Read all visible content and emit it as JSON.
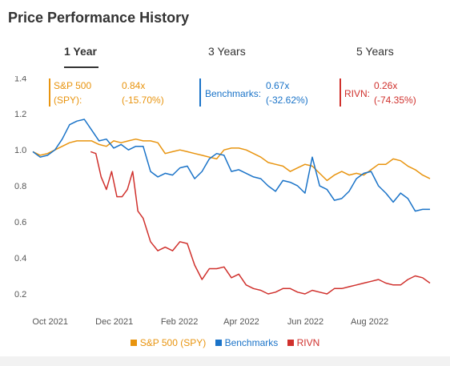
{
  "page": {
    "title": "Price Performance History"
  },
  "tabs": [
    {
      "label": "1 Year",
      "active": true
    },
    {
      "label": "3 Years",
      "active": false
    },
    {
      "label": "5 Years",
      "active": false
    }
  ],
  "annotations": [
    {
      "name": "S&P 500",
      "name2": "(SPY):",
      "ratio": "0.84x",
      "change": "(-15.70%)",
      "color": "#e8940f"
    },
    {
      "name": "Benchmarks:",
      "name2": "",
      "ratio": "0.67x",
      "change": "(-32.62%)",
      "color": "#1a73c8"
    },
    {
      "name": "RIVN:",
      "name2": "",
      "ratio": "0.26x",
      "change": "(-74.35%)",
      "color": "#d0312d"
    }
  ],
  "legend": [
    {
      "label": "S&P 500 (SPY)",
      "color": "#e8940f"
    },
    {
      "label": "Benchmarks",
      "color": "#1a73c8"
    },
    {
      "label": "RIVN",
      "color": "#d0312d"
    }
  ],
  "chart_data": {
    "type": "line",
    "title": "",
    "xlabel": "",
    "ylabel": "",
    "x_ticks": [
      {
        "label": "Oct 2021",
        "value": "2021-10-01"
      },
      {
        "label": "Dec 2021",
        "value": "2021-12-01"
      },
      {
        "label": "Feb 2022",
        "value": "2022-02-01"
      },
      {
        "label": "Apr 2022",
        "value": "2022-04-01"
      },
      {
        "label": "Jun 2022",
        "value": "2022-06-01"
      },
      {
        "label": "Aug 2022",
        "value": "2022-08-01"
      }
    ],
    "y_ticks": [
      "0.2",
      "0.4",
      "0.6",
      "0.8",
      "1.0",
      "1.2",
      "1.4"
    ],
    "ylim": [
      0.16,
      1.41
    ],
    "xlim": [
      "2021-09-16",
      "2022-09-29"
    ],
    "grid": false,
    "legend_position": "bottom",
    "series": [
      {
        "name": "S&P 500 (SPY)",
        "color": "#e8940f",
        "x": [
          "2021-09-16",
          "2021-09-23",
          "2021-09-30",
          "2021-10-07",
          "2021-10-14",
          "2021-10-21",
          "2021-10-28",
          "2021-11-04",
          "2021-11-11",
          "2021-11-18",
          "2021-11-25",
          "2021-12-02",
          "2021-12-09",
          "2021-12-16",
          "2021-12-23",
          "2021-12-30",
          "2022-01-06",
          "2022-01-13",
          "2022-01-20",
          "2022-01-27",
          "2022-02-03",
          "2022-02-10",
          "2022-02-17",
          "2022-02-24",
          "2022-03-03",
          "2022-03-10",
          "2022-03-17",
          "2022-03-24",
          "2022-03-31",
          "2022-04-07",
          "2022-04-14",
          "2022-04-21",
          "2022-04-28",
          "2022-05-05",
          "2022-05-12",
          "2022-05-19",
          "2022-05-26",
          "2022-06-02",
          "2022-06-09",
          "2022-06-16",
          "2022-06-23",
          "2022-06-30",
          "2022-07-07",
          "2022-07-14",
          "2022-07-21",
          "2022-07-28",
          "2022-08-04",
          "2022-08-11",
          "2022-08-18",
          "2022-08-25",
          "2022-09-01",
          "2022-09-08",
          "2022-09-15",
          "2022-09-22",
          "2022-09-29"
        ],
        "y": [
          0.99,
          0.97,
          0.98,
          1.0,
          1.02,
          1.04,
          1.05,
          1.05,
          1.05,
          1.03,
          1.02,
          1.05,
          1.04,
          1.05,
          1.06,
          1.05,
          1.05,
          1.04,
          0.98,
          0.99,
          1.0,
          0.99,
          0.98,
          0.97,
          0.96,
          0.95,
          1.0,
          1.01,
          1.01,
          1.0,
          0.98,
          0.96,
          0.93,
          0.92,
          0.91,
          0.88,
          0.9,
          0.92,
          0.91,
          0.87,
          0.83,
          0.86,
          0.88,
          0.86,
          0.87,
          0.86,
          0.89,
          0.92,
          0.92,
          0.95,
          0.94,
          0.91,
          0.89,
          0.86,
          0.84
        ]
      },
      {
        "name": "Benchmarks",
        "color": "#1a73c8",
        "x": [
          "2021-09-16",
          "2021-09-23",
          "2021-09-30",
          "2021-10-07",
          "2021-10-14",
          "2021-10-21",
          "2021-10-28",
          "2021-11-04",
          "2021-11-11",
          "2021-11-18",
          "2021-11-25",
          "2021-12-02",
          "2021-12-09",
          "2021-12-16",
          "2021-12-23",
          "2021-12-30",
          "2022-01-06",
          "2022-01-13",
          "2022-01-20",
          "2022-01-27",
          "2022-02-03",
          "2022-02-10",
          "2022-02-17",
          "2022-02-24",
          "2022-03-03",
          "2022-03-10",
          "2022-03-17",
          "2022-03-24",
          "2022-03-31",
          "2022-04-07",
          "2022-04-14",
          "2022-04-21",
          "2022-04-28",
          "2022-05-05",
          "2022-05-12",
          "2022-05-19",
          "2022-05-26",
          "2022-06-02",
          "2022-06-09",
          "2022-06-16",
          "2022-06-23",
          "2022-06-30",
          "2022-07-07",
          "2022-07-14",
          "2022-07-21",
          "2022-07-28",
          "2022-08-04",
          "2022-08-11",
          "2022-08-18",
          "2022-08-25",
          "2022-09-01",
          "2022-09-08",
          "2022-09-15",
          "2022-09-22",
          "2022-09-29"
        ],
        "y": [
          0.99,
          0.96,
          0.97,
          1.0,
          1.06,
          1.14,
          1.16,
          1.17,
          1.11,
          1.05,
          1.06,
          1.01,
          1.03,
          1.0,
          1.02,
          1.02,
          0.88,
          0.85,
          0.87,
          0.86,
          0.9,
          0.91,
          0.84,
          0.88,
          0.95,
          0.98,
          0.97,
          0.88,
          0.89,
          0.87,
          0.85,
          0.84,
          0.8,
          0.77,
          0.83,
          0.82,
          0.8,
          0.76,
          0.96,
          0.8,
          0.78,
          0.72,
          0.73,
          0.77,
          0.84,
          0.87,
          0.88,
          0.8,
          0.76,
          0.71,
          0.76,
          0.73,
          0.66,
          0.67,
          0.67
        ]
      },
      {
        "name": "RIVN",
        "color": "#d0312d",
        "x": [
          "2021-11-10",
          "2021-11-15",
          "2021-11-20",
          "2021-11-25",
          "2021-11-30",
          "2021-12-05",
          "2021-12-10",
          "2021-12-15",
          "2021-12-20",
          "2021-12-25",
          "2021-12-30",
          "2022-01-06",
          "2022-01-13",
          "2022-01-20",
          "2022-01-27",
          "2022-02-03",
          "2022-02-10",
          "2022-02-17",
          "2022-02-24",
          "2022-03-03",
          "2022-03-10",
          "2022-03-17",
          "2022-03-24",
          "2022-03-31",
          "2022-04-07",
          "2022-04-14",
          "2022-04-21",
          "2022-04-28",
          "2022-05-05",
          "2022-05-12",
          "2022-05-19",
          "2022-05-26",
          "2022-06-02",
          "2022-06-09",
          "2022-06-16",
          "2022-06-23",
          "2022-06-30",
          "2022-07-07",
          "2022-07-14",
          "2022-07-21",
          "2022-07-28",
          "2022-08-04",
          "2022-08-11",
          "2022-08-18",
          "2022-08-25",
          "2022-09-01",
          "2022-09-08",
          "2022-09-15",
          "2022-09-22",
          "2022-09-29"
        ],
        "y": [
          0.99,
          0.98,
          0.85,
          0.78,
          0.88,
          0.74,
          0.74,
          0.78,
          0.88,
          0.66,
          0.62,
          0.49,
          0.44,
          0.46,
          0.44,
          0.49,
          0.48,
          0.36,
          0.28,
          0.34,
          0.34,
          0.35,
          0.29,
          0.31,
          0.25,
          0.23,
          0.22,
          0.2,
          0.21,
          0.23,
          0.23,
          0.21,
          0.2,
          0.22,
          0.21,
          0.2,
          0.23,
          0.23,
          0.24,
          0.25,
          0.26,
          0.27,
          0.28,
          0.26,
          0.25,
          0.25,
          0.28,
          0.3,
          0.29,
          0.26
        ]
      }
    ]
  }
}
